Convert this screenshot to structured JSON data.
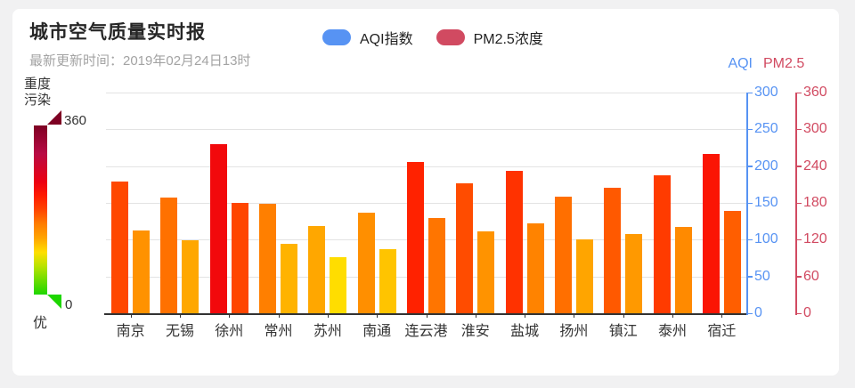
{
  "header": {
    "title": "城市空气质量实时报",
    "update_time": "最新更新时间：2019年02月24日13时"
  },
  "legend": {
    "items": [
      {
        "label": "AQI指数",
        "color": "#5793f3"
      },
      {
        "label": "PM2.5浓度",
        "color": "#d14a61"
      }
    ]
  },
  "visual_map": {
    "high_label_line1": "重度",
    "high_label_line2": "污染",
    "max_label": "360",
    "min_label": "0",
    "low_label": "优"
  },
  "chart_data": {
    "type": "bar",
    "title": "城市空气质量实时报",
    "categories": [
      "南京",
      "无锡",
      "徐州",
      "常州",
      "苏州",
      "南通",
      "连云港",
      "淮安",
      "盐城",
      "扬州",
      "镇江",
      "泰州",
      "宿迁"
    ],
    "series": [
      {
        "name": "AQI指数",
        "yaxis": "aqi",
        "values": [
          179,
          157,
          230,
          149,
          119,
          137,
          206,
          177,
          194,
          158,
          170,
          188,
          217
        ]
      },
      {
        "name": "PM2.5浓度",
        "yaxis": "pm25",
        "values": [
          135,
          119,
          180,
          113,
          91,
          104,
          155,
          134,
          146,
          120,
          129,
          141,
          167
        ]
      }
    ],
    "axes": {
      "aqi": {
        "title": "AQI",
        "color": "#5793f3",
        "min": 0,
        "max": 300,
        "ticks": [
          0,
          50,
          100,
          150,
          200,
          250,
          300
        ]
      },
      "pm25": {
        "title": "PM2.5",
        "color": "#d14a61",
        "min": 0,
        "max": 360,
        "ticks": [
          0,
          60,
          120,
          180,
          240,
          300,
          360
        ]
      }
    },
    "grid": true,
    "legend_position": "top",
    "bar_color_mode": "gradient-by-value",
    "visual_map_range": [
      0,
      360
    ],
    "visual_map_stops": [
      [
        0,
        "#1ed600"
      ],
      [
        60,
        "#b8e300"
      ],
      [
        90,
        "#ffdf00"
      ],
      [
        120,
        "#ffa500"
      ],
      [
        150,
        "#ff7e00"
      ],
      [
        180,
        "#ff4600"
      ],
      [
        210,
        "#ff1c00"
      ],
      [
        240,
        "#ec0012"
      ],
      [
        300,
        "#b80b44"
      ],
      [
        360,
        "#7e0023"
      ]
    ]
  }
}
